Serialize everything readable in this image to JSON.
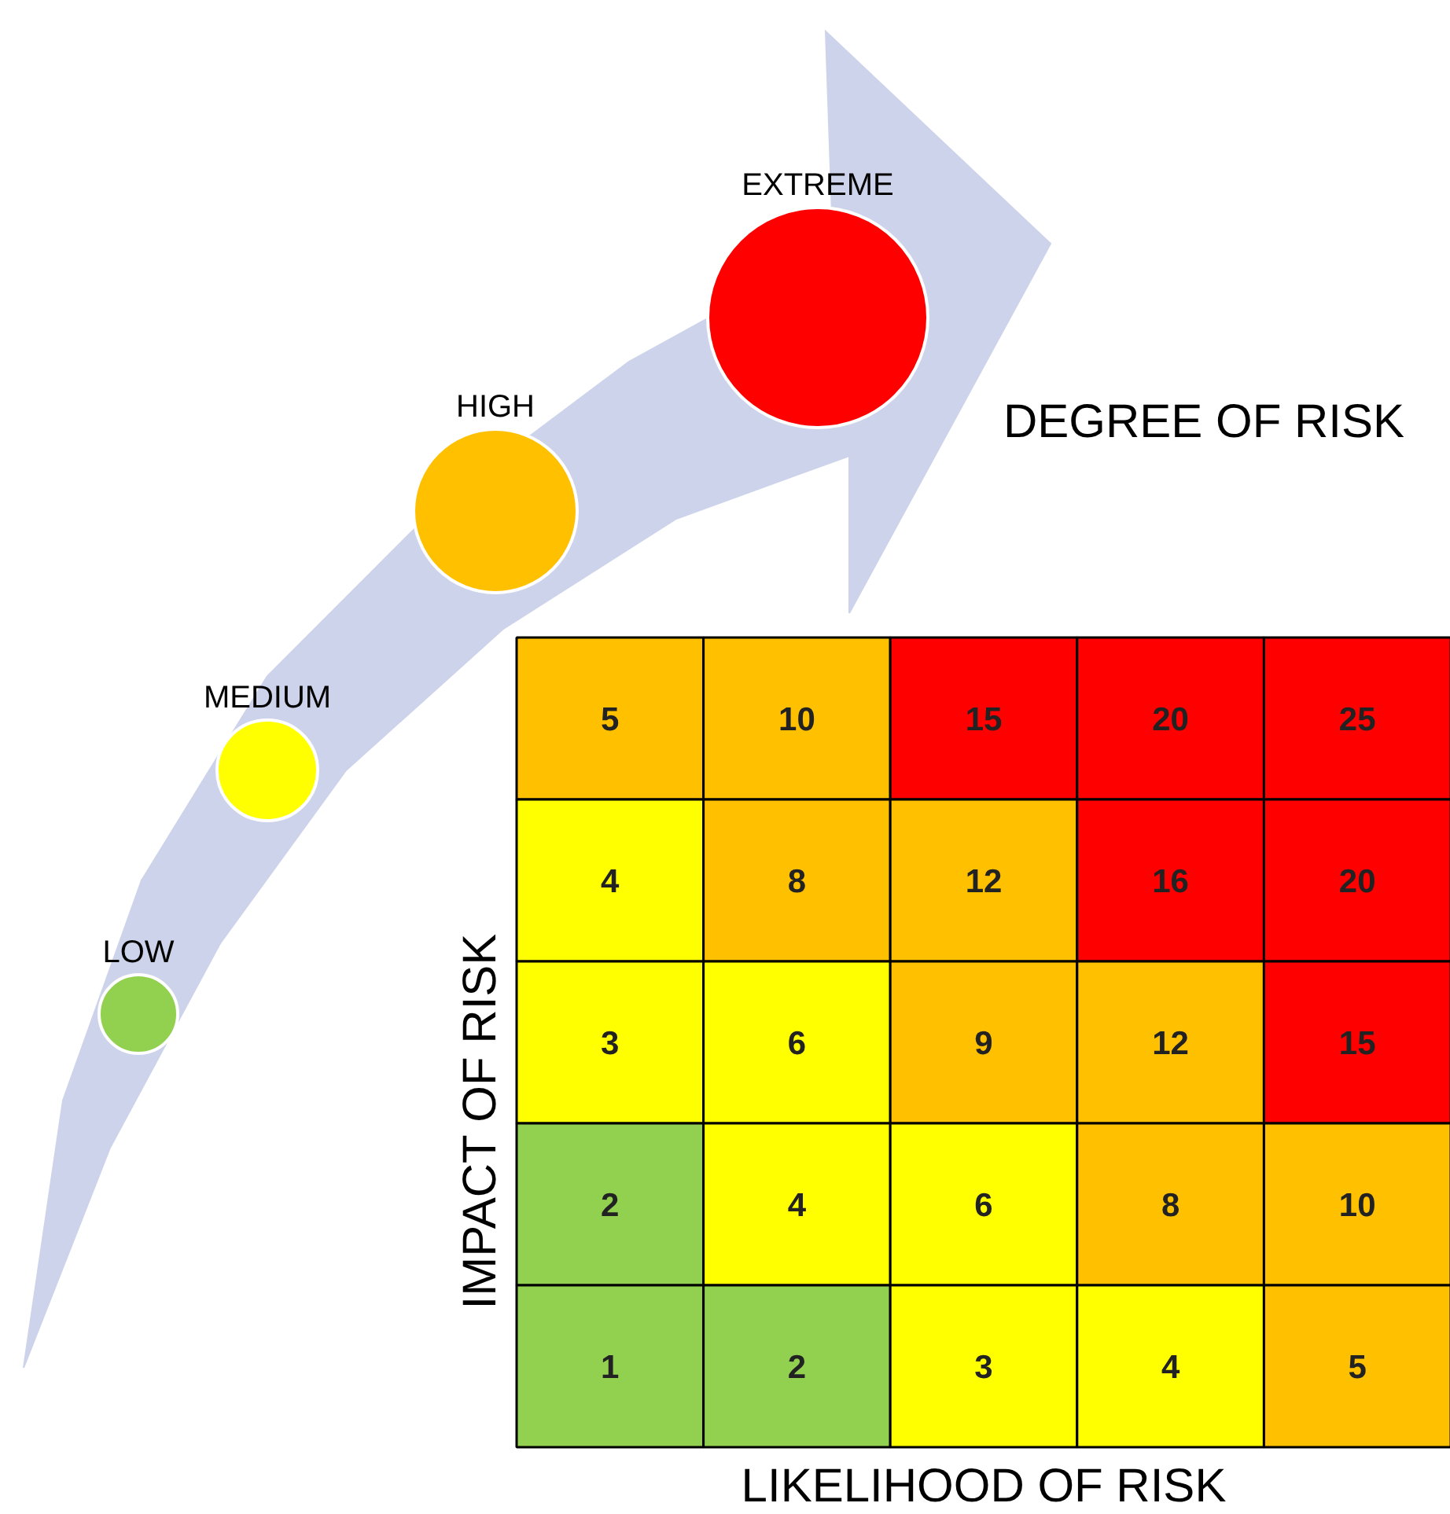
{
  "chart_data": {
    "type": "heatmap",
    "title": "DEGREE OF RISK",
    "xlabel": "LIKELIHOOD OF RISK",
    "ylabel": "IMPACT OF RISK",
    "categories": [
      null,
      null,
      null,
      null,
      null
    ],
    "y_categories": [
      null,
      null,
      null,
      null,
      null
    ],
    "cells": [
      [
        5,
        10,
        15,
        20,
        25
      ],
      [
        4,
        8,
        12,
        16,
        20
      ],
      [
        3,
        6,
        9,
        12,
        15
      ],
      [
        2,
        4,
        6,
        8,
        10
      ],
      [
        1,
        2,
        3,
        4,
        5
      ]
    ],
    "colors": [
      [
        "#ffc000",
        "#ffc000",
        "#ff0000",
        "#ff0000",
        "#ff0000"
      ],
      [
        "#ffff00",
        "#ffc000",
        "#ffc000",
        "#ff0000",
        "#ff0000"
      ],
      [
        "#ffff00",
        "#ffff00",
        "#ffc000",
        "#ffc000",
        "#ff0000"
      ],
      [
        "#92d050",
        "#ffff00",
        "#ffff00",
        "#ffc000",
        "#ffc000"
      ],
      [
        "#92d050",
        "#92d050",
        "#ffff00",
        "#ffff00",
        "#ffc000"
      ]
    ],
    "data_labels": true,
    "annotations": [
      "LOW",
      "MEDIUM",
      "HIGH",
      "EXTREME"
    ]
  }
}
